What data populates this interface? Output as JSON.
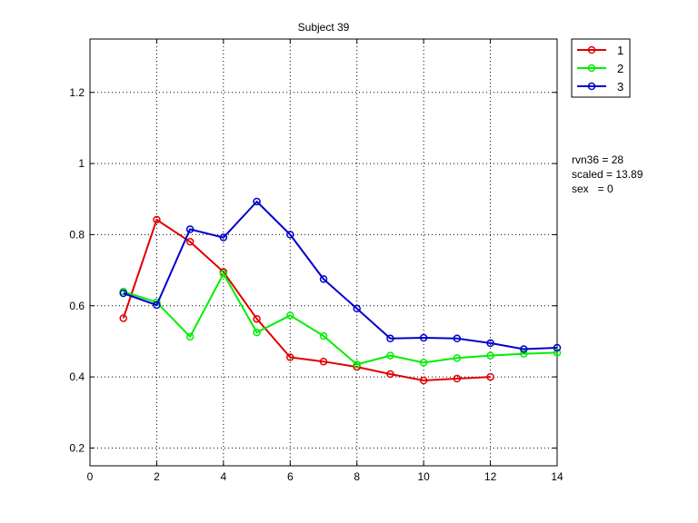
{
  "chart_data": {
    "type": "line",
    "title": "Subject 39",
    "xlabel": "",
    "ylabel": "",
    "xlim": [
      0,
      14
    ],
    "ylim": [
      0.15,
      1.35
    ],
    "xticks": [
      0,
      2,
      4,
      6,
      8,
      10,
      12,
      14
    ],
    "yticks": [
      0.2,
      0.4,
      0.6,
      0.8,
      1,
      1.2
    ],
    "xtick_labels": [
      "0",
      "2",
      "4",
      "6",
      "8",
      "10",
      "12",
      "14"
    ],
    "ytick_labels": [
      "0.2",
      "0.4",
      "0.6",
      "0.8",
      "1",
      "1.2"
    ],
    "grid": true,
    "legend_position": "outside-top-right",
    "series": [
      {
        "name": "1",
        "color": "#e00000",
        "marker": "circle",
        "x": [
          1,
          2,
          3,
          4,
          5,
          6,
          7,
          8,
          9,
          10,
          11,
          12
        ],
        "values": [
          0.565,
          0.842,
          0.78,
          0.695,
          0.563,
          0.455,
          0.443,
          0.428,
          0.408,
          0.39,
          0.395,
          0.4
        ]
      },
      {
        "name": "2",
        "color": "#00ee00",
        "marker": "circle",
        "x": [
          1,
          2,
          3,
          4,
          5,
          6,
          7,
          8,
          9,
          10,
          11,
          12,
          13,
          14
        ],
        "values": [
          0.64,
          0.61,
          0.513,
          0.69,
          0.525,
          0.573,
          0.515,
          0.435,
          0.46,
          0.44,
          0.453,
          0.46,
          0.465,
          0.468
        ]
      },
      {
        "name": "3",
        "color": "#0000cc",
        "marker": "circle",
        "x": [
          1,
          2,
          3,
          4,
          5,
          6,
          7,
          8,
          9,
          10,
          11,
          12,
          13,
          14
        ],
        "values": [
          0.635,
          0.602,
          0.815,
          0.792,
          0.893,
          0.8,
          0.675,
          0.592,
          0.508,
          0.51,
          0.508,
          0.495,
          0.478,
          0.482
        ]
      }
    ],
    "annotations": [
      "rvn36 = 28",
      "scaled = 13.89",
      "sex   = 0"
    ]
  }
}
